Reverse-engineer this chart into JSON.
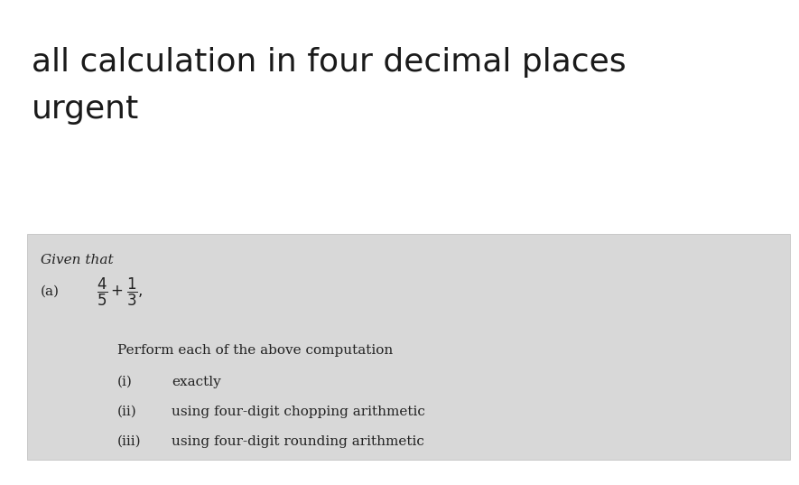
{
  "title_line1": "all calculation in four decimal places",
  "title_line2": "urgent",
  "title_fontsize": 26,
  "title_color": "#1a1a1a",
  "box_bg_color": "#d8d8d8",
  "box_text_color": "#222222",
  "given_that_text": "Given that",
  "label_a": "(a)",
  "perform_text": "Perform each of the above computation",
  "item_i_label": "(i)",
  "item_i_text": "exactly",
  "item_ii_label": "(ii)",
  "item_ii_text": "using four-digit chopping arithmetic",
  "item_iii_label": "(iii)",
  "item_iii_text": "using four-digit rounding arithmetic",
  "body_fontsize": 13,
  "given_fontsize": 11,
  "bg_color": "#ffffff",
  "fig_width": 8.85,
  "fig_height": 5.37,
  "dpi": 100
}
